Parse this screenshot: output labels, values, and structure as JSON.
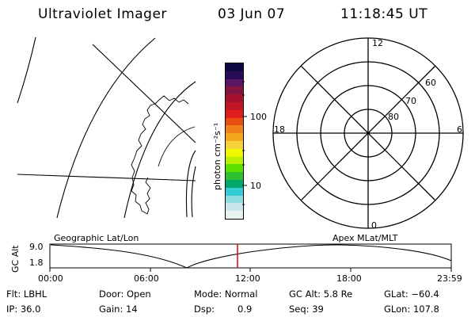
{
  "header": {
    "instrument": "Ultraviolet Imager",
    "date": "03 Jun 07",
    "time": "11:18:45 UT"
  },
  "colorbar": {
    "unit_label": "photon cm⁻²s⁻¹",
    "tick_100": "100",
    "tick_10": "10",
    "colors": [
      "#e8f2f2",
      "#c8e6ea",
      "#8edcdf",
      "#33cdd6",
      "#00a86b",
      "#2ec02e",
      "#5be000",
      "#b8f000",
      "#eef800",
      "#f3d23a",
      "#f2a81a",
      "#f08018",
      "#e84e14",
      "#e01e1e",
      "#c01626",
      "#a6122e",
      "#801640",
      "#5a1660",
      "#2a0b56",
      "#0c0840"
    ]
  },
  "polar": {
    "mlt_labels": {
      "top": "12",
      "bottom": "0",
      "left": "18",
      "right": "6"
    },
    "lat_labels": [
      "60",
      "70",
      "80"
    ]
  },
  "timeline": {
    "left_title": "Geographic Lat/Lon",
    "right_title": "Apex MLat/MLT",
    "y_axis_label": "GC Alt",
    "y_ticks": [
      "9.0",
      "1.8"
    ],
    "x_ticks": [
      "00:00",
      "06:00",
      "12:00",
      "18:00",
      "23:59"
    ],
    "marker_color": "#dd0000"
  },
  "status": {
    "row1": {
      "filter": "Flt: LBHL",
      "door": "Door: Open",
      "mode": "Mode: Normal",
      "gc_alt": "GC Alt: 5.8 Re",
      "glat": "GLat: −60.4"
    },
    "row2": {
      "ip": "IP: 36.0",
      "gain": "Gain: 14",
      "dsp_label": "Dsp:",
      "dsp_value": "0.9",
      "seq": "Seq: 39",
      "glon": "GLon: 107.8"
    }
  }
}
